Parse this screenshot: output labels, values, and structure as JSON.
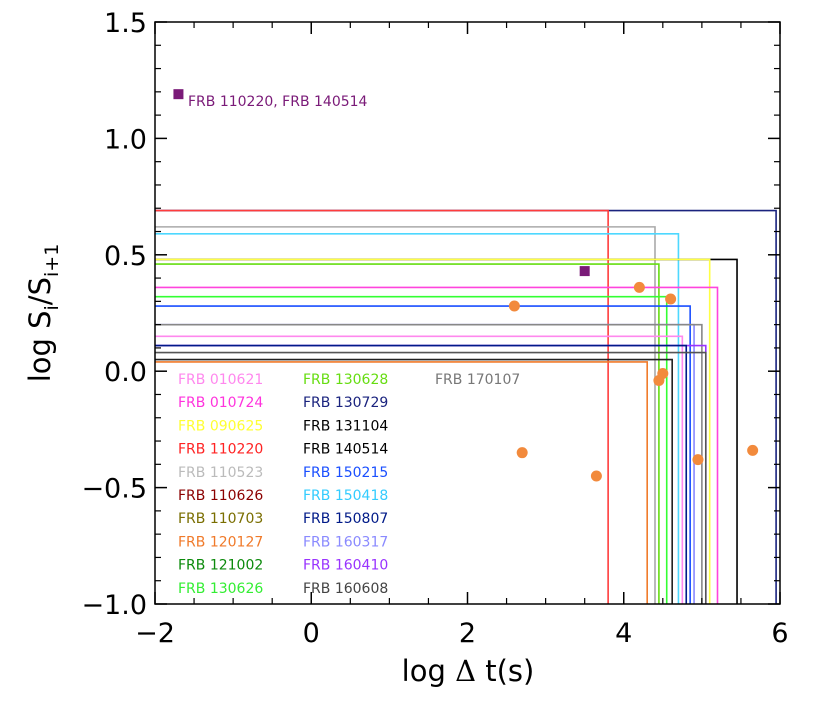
{
  "chart_data": {
    "type": "scatter",
    "xlabel": {
      "prefix": "log ",
      "delta": "Δ",
      "suffix": " t(s)"
    },
    "ylabel": {
      "prefix": "log S",
      "sub1": "i",
      "mid": "/S",
      "sub2": "i+1"
    },
    "xlim": [
      -2,
      6
    ],
    "ylim": [
      -1.0,
      1.5
    ],
    "xticks": [
      -2,
      0,
      2,
      4,
      6
    ],
    "xtick_labels": [
      "−2",
      "0",
      "2",
      "4",
      "6"
    ],
    "yticks": [
      -1.0,
      -0.5,
      0.0,
      0.5,
      1.0,
      1.5
    ],
    "ytick_labels": [
      "−1.0",
      "−0.5",
      "0.0",
      "0.5",
      "1.0",
      "1.5"
    ],
    "highlight": {
      "label": "FRB 110220, FRB 140514",
      "color": "#7a1a78",
      "marker_points": [
        {
          "x": -1.7,
          "y": 1.19
        },
        {
          "x": 3.5,
          "y": 0.43
        }
      ]
    },
    "points": {
      "color": "#f28a3c",
      "values": [
        {
          "x": 2.6,
          "y": 0.28
        },
        {
          "x": 4.2,
          "y": 0.36
        },
        {
          "x": 4.6,
          "y": 0.31
        },
        {
          "x": 4.45,
          "y": -0.04
        },
        {
          "x": 4.5,
          "y": -0.01
        },
        {
          "x": 2.7,
          "y": -0.35
        },
        {
          "x": 3.65,
          "y": -0.45
        },
        {
          "x": 4.95,
          "y": -0.38
        },
        {
          "x": 5.65,
          "y": -0.34
        }
      ]
    },
    "boxes": [
      {
        "name": "FRB 130729",
        "color": "#1a237e",
        "x": 5.95,
        "y": 0.69
      },
      {
        "name": "FRB 110220",
        "color": "#ff3c3c",
        "x": 3.8,
        "y": 0.69
      },
      {
        "name": "FRB 110523",
        "color": "#aaaaaa",
        "x": 4.4,
        "y": 0.62
      },
      {
        "name": "FRB 150418",
        "color": "#4dd8ff",
        "x": 4.7,
        "y": 0.59
      },
      {
        "name": "FRB 140514",
        "color": "#000000",
        "x": 5.45,
        "y": 0.48
      },
      {
        "name": "FRB 090625",
        "color": "#ffff44",
        "x": 5.1,
        "y": 0.48
      },
      {
        "name": "FRB 130628",
        "color": "#66dd11",
        "x": 4.45,
        "y": 0.46
      },
      {
        "name": "FRB 010724",
        "color": "#ff44dd",
        "x": 5.2,
        "y": 0.36
      },
      {
        "name": "FRB 130626",
        "color": "#33ff33",
        "x": 4.55,
        "y": 0.32
      },
      {
        "name": "FRB 150215",
        "color": "#1a4fff",
        "x": 4.85,
        "y": 0.28
      },
      {
        "name": "FRB 160317",
        "color": "#8a8aff",
        "x": 4.9,
        "y": 0.2
      },
      {
        "name": "FRB 170107",
        "color": "#888888",
        "x": 5.0,
        "y": 0.2
      },
      {
        "name": "FRB 010621",
        "color": "#ff88ee",
        "x": 4.75,
        "y": 0.15
      },
      {
        "name": "FRB 160410",
        "color": "#9933ff",
        "x": 5.05,
        "y": 0.11
      },
      {
        "name": "FRB 150807",
        "color": "#001a88",
        "x": 4.8,
        "y": 0.11
      },
      {
        "name": "FRB 160608",
        "color": "#555555",
        "x": 5.05,
        "y": 0.08
      },
      {
        "name": "FRB 131104",
        "color": "#222222",
        "x": 4.62,
        "y": 0.05
      },
      {
        "name": "FRB 120127",
        "color": "#f07a2a",
        "x": 4.3,
        "y": 0.04
      }
    ],
    "legend": {
      "position": "bottom-left",
      "columns": [
        [
          {
            "label": "FRB 010621",
            "color": "#ff88ee"
          },
          {
            "label": "FRB 010724",
            "color": "#ff33dd"
          },
          {
            "label": "FRB 090625",
            "color": "#ffff33"
          },
          {
            "label": "FRB 110220",
            "color": "#ff2222"
          },
          {
            "label": "FRB 110523",
            "color": "#bbbbbb"
          },
          {
            "label": "FRB 110626",
            "color": "#8b0000"
          },
          {
            "label": "FRB 110703",
            "color": "#7a6e00"
          },
          {
            "label": "FRB 120127",
            "color": "#f07a2a"
          },
          {
            "label": "FRB 121002",
            "color": "#0b8a0b"
          },
          {
            "label": "FRB 130626",
            "color": "#33ee33"
          }
        ],
        [
          {
            "label": "FRB 130628",
            "color": "#66dd11"
          },
          {
            "label": "FRB 130729",
            "color": "#1a237e"
          },
          {
            "label": "FRB 131104",
            "color": "#000000"
          },
          {
            "label": "FRB 140514",
            "color": "#000000"
          },
          {
            "label": "FRB 150215",
            "color": "#1a4fff"
          },
          {
            "label": "FRB 150418",
            "color": "#33ccff"
          },
          {
            "label": "FRB 150807",
            "color": "#001a88"
          },
          {
            "label": "FRB 160317",
            "color": "#8a8aff"
          },
          {
            "label": "FRB 160410",
            "color": "#9933ff"
          },
          {
            "label": "FRB 160608",
            "color": "#444444"
          }
        ],
        [
          {
            "label": "FRB 170107",
            "color": "#777777"
          }
        ]
      ]
    }
  }
}
